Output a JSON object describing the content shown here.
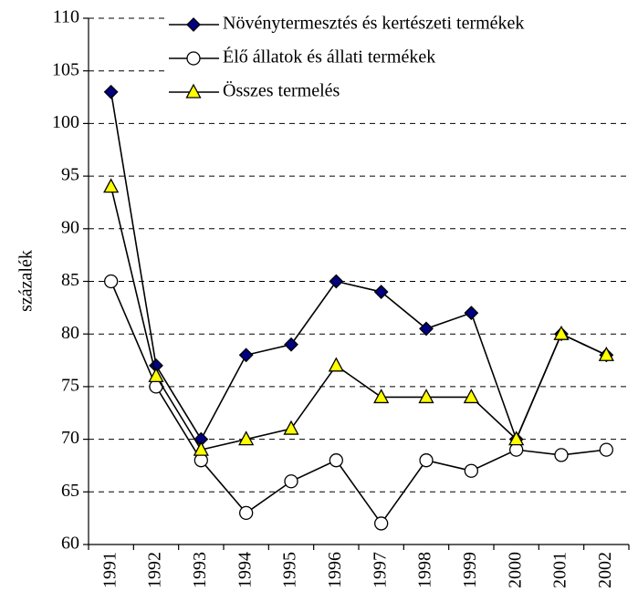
{
  "chart_data": {
    "type": "line",
    "y_label": "százalék",
    "categories": [
      "1991",
      "1992",
      "1993",
      "1994",
      "1995",
      "1996",
      "1997",
      "1998",
      "1999",
      "2000",
      "2001",
      "2002"
    ],
    "series": [
      {
        "name": "Növénytermesztés és kertészeti termékek",
        "color": "#000080",
        "marker": "diamond",
        "values": [
          103,
          77,
          70,
          78,
          79,
          85,
          84,
          80.5,
          82,
          70,
          80,
          78
        ]
      },
      {
        "name": "Élő állatok és állati termékek",
        "color": "#ffffff",
        "marker": "circle",
        "values": [
          85,
          75,
          68,
          63,
          66,
          68,
          62,
          68,
          67,
          69,
          68.5,
          69
        ]
      },
      {
        "name": "Összes termelés",
        "color": "#ffff00",
        "marker": "triangle",
        "values": [
          94,
          76,
          69,
          70,
          71,
          77,
          74,
          74,
          74,
          70,
          80,
          78
        ]
      }
    ],
    "ylim": [
      60,
      110
    ],
    "yticks": [
      60,
      65,
      70,
      75,
      80,
      85,
      90,
      95,
      100,
      105,
      110
    ],
    "grid": true
  }
}
